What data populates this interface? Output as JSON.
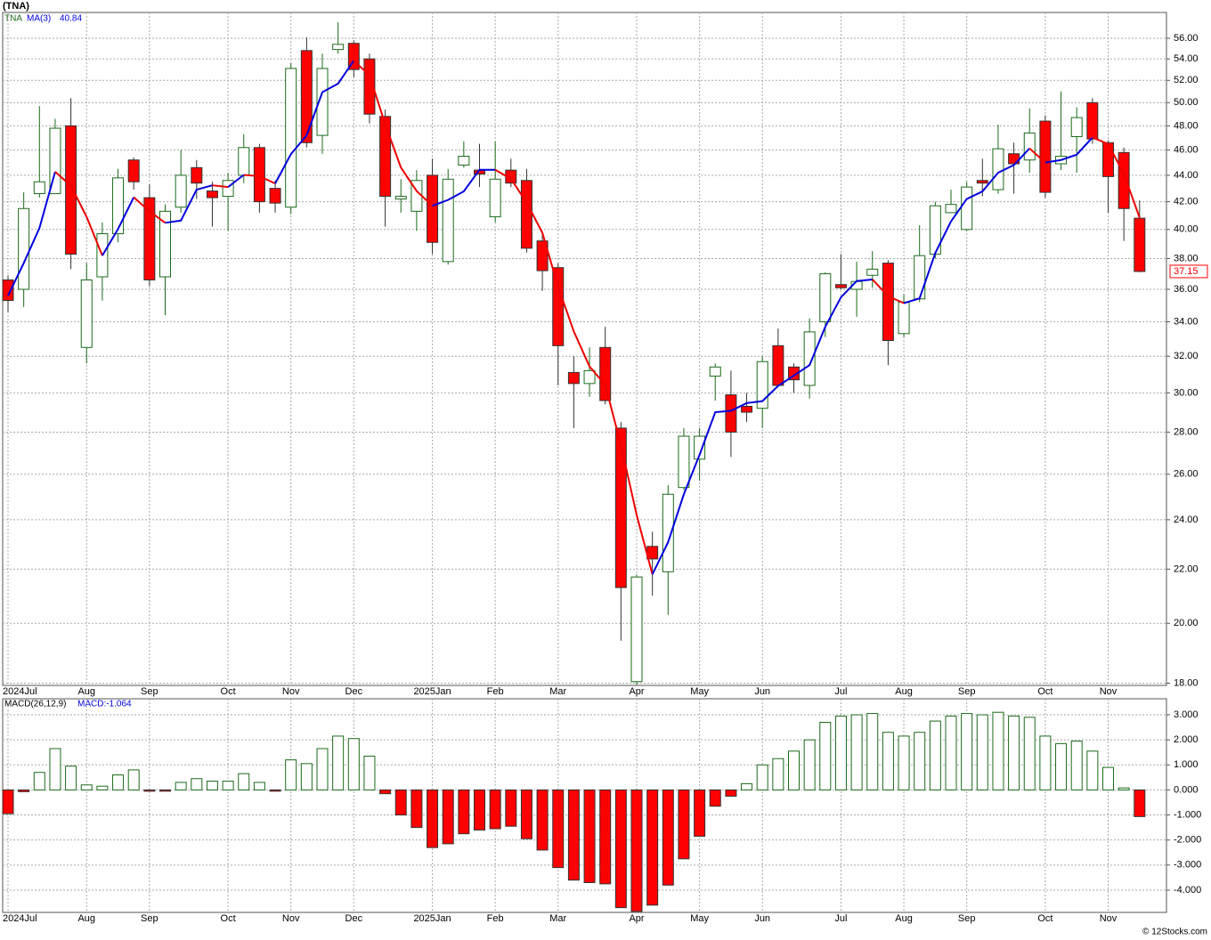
{
  "chart_data": [
    {
      "type": "candlestick",
      "title": "(TNA)",
      "symbol": "TNA",
      "log_scale": true,
      "grid": true,
      "up_color": "#1a6b1a",
      "down_color": "#ff0000",
      "categories": [
        "2024Jul",
        null,
        null,
        null,
        null,
        "Aug",
        null,
        null,
        null,
        "Sep",
        null,
        null,
        null,
        null,
        "Oct",
        null,
        null,
        null,
        "Nov",
        null,
        null,
        null,
        "Dec",
        null,
        null,
        null,
        null,
        "2025Jan",
        null,
        null,
        null,
        "Feb",
        null,
        null,
        null,
        "Mar",
        null,
        null,
        null,
        null,
        "Apr",
        null,
        null,
        null,
        "May",
        null,
        null,
        null,
        "Jun",
        null,
        null,
        null,
        null,
        "Jul",
        null,
        null,
        null,
        "Aug",
        null,
        null,
        null,
        "Sep",
        null,
        null,
        null,
        null,
        "Oct",
        null,
        null,
        null,
        "Nov",
        null,
        null
      ],
      "open": [
        36.6,
        36,
        42.6,
        42.6,
        48,
        32.5,
        36.8,
        39.7,
        45.2,
        42.3,
        36.8,
        41.6,
        44.6,
        42.8,
        42.4,
        44,
        46.2,
        43,
        41.6,
        54.8,
        47.2,
        54.9,
        55.5,
        54,
        48.8,
        42.2,
        41.3,
        44,
        37.8,
        44.8,
        44.4,
        40.9,
        44.4,
        43.6,
        39.2,
        37.4,
        31.1,
        30.5,
        32.5,
        28.2,
        18.05,
        22.9,
        21.9,
        25.4,
        26.7,
        30.9,
        29.9,
        29.3,
        29.2,
        32.6,
        31.4,
        30.4,
        34,
        36.3,
        36,
        36.9,
        37.7,
        33.3,
        35.4,
        38.3,
        41.2,
        40,
        43.6,
        42.9,
        45.7,
        45.2,
        48.4,
        44.9,
        47.1,
        50,
        46.6,
        45.8,
        40.8
      ],
      "high": [
        36.9,
        42.7,
        49.7,
        48.6,
        50.4,
        37.7,
        40.5,
        44.5,
        45.4,
        43.3,
        41.8,
        46,
        45.2,
        43.5,
        44.2,
        47.3,
        46.5,
        43.6,
        53.6,
        56.1,
        54.5,
        57.6,
        55.8,
        54.5,
        49.4,
        43.7,
        44.4,
        45.3,
        44.5,
        46.7,
        46.5,
        46.7,
        45.3,
        44.5,
        39.8,
        37.7,
        32,
        32.5,
        33.7,
        28.5,
        21.8,
        23.5,
        25.5,
        28.2,
        28.2,
        31.6,
        31.2,
        30,
        32,
        33.6,
        31.6,
        34.2,
        37.1,
        38.3,
        37.8,
        38.5,
        37.9,
        35.7,
        40.3,
        42,
        42.9,
        43.5,
        45.3,
        48.1,
        46.6,
        49.5,
        48.9,
        51,
        49.6,
        50.4,
        46.8,
        46.2,
        42.1
      ],
      "low": [
        34.6,
        34.9,
        42.3,
        42.6,
        37.3,
        31.6,
        35.3,
        39.1,
        42.9,
        36.2,
        34.4,
        41.2,
        42.2,
        40.2,
        39.9,
        43.4,
        41.2,
        41.2,
        41.1,
        46.2,
        45.7,
        54.5,
        52.3,
        48.2,
        40.2,
        41.2,
        39.9,
        38.3,
        37.6,
        44.6,
        43.1,
        40.5,
        43.1,
        38.4,
        35.9,
        30.4,
        28.2,
        29.8,
        29.4,
        19.4,
        17.95,
        21,
        20.3,
        25.3,
        25.7,
        29.6,
        26.8,
        28.5,
        28.2,
        30.4,
        30,
        29.7,
        33.1,
        36,
        34.3,
        36.1,
        31.5,
        33.1,
        35.2,
        38,
        41.2,
        39.9,
        42.4,
        42.6,
        42.6,
        44.2,
        42.3,
        44.4,
        44.2,
        46.5,
        41.2,
        39.2,
        37.1
      ],
      "close": [
        35.3,
        41.5,
        43.5,
        47.8,
        38.3,
        36.6,
        39.7,
        43.8,
        43.5,
        36.6,
        41.3,
        44,
        43.4,
        42.3,
        43.6,
        46.2,
        42,
        41.9,
        53.1,
        46.6,
        53.1,
        55.4,
        53,
        49,
        42.4,
        42.4,
        43.6,
        39.1,
        43.7,
        45.5,
        44.1,
        43.7,
        43.4,
        38.7,
        37.2,
        32.6,
        30.5,
        31.2,
        29.6,
        21.3,
        21.7,
        22.4,
        25.1,
        27.8,
        27.8,
        31.4,
        28,
        29,
        31.7,
        30.4,
        30.7,
        33.4,
        37,
        36.1,
        36.5,
        37.3,
        32.9,
        35.2,
        38.2,
        41.7,
        41.8,
        43.1,
        43.4,
        46.1,
        44.9,
        47.4,
        42.7,
        45.5,
        48.7,
        46.9,
        43.9,
        41.5,
        37.15
      ],
      "ma": {
        "name": "MA(3)",
        "up_color": "#0000dd",
        "down_color": "#ee0000",
        "last_value_label": "40.84",
        "values": [
          35.6,
          37.7,
          40.1,
          44.27,
          43.2,
          40.9,
          38.2,
          40.03,
          42.33,
          41.3,
          40.47,
          40.63,
          42.9,
          43.23,
          43.1,
          44.03,
          43.93,
          43.37,
          45.67,
          47.2,
          50.93,
          51.7,
          53.83,
          52.47,
          48.13,
          44.6,
          42.8,
          41.7,
          42.13,
          42.77,
          44.43,
          44.43,
          43.73,
          41.93,
          39.77,
          36.17,
          33.43,
          31.43,
          30.43,
          27.37,
          24.2,
          21.8,
          23.07,
          25.1,
          26.9,
          29,
          29.07,
          29.47,
          29.57,
          30.37,
          30.93,
          31.5,
          33.7,
          35.5,
          36.53,
          36.63,
          35.57,
          35.13,
          35.43,
          38.37,
          40.57,
          42.2,
          42.77,
          44.2,
          44.8,
          46.13,
          45,
          45.2,
          45.63,
          47.03,
          46.5,
          44.1,
          40.84
        ]
      },
      "ylim": [
        17.93,
        58.6
      ],
      "yticks": [
        {
          "value": 18,
          "label": "18.00"
        },
        {
          "value": 20,
          "label": "20.00"
        },
        {
          "value": 22,
          "label": "22.00"
        },
        {
          "value": 24,
          "label": "24.00"
        },
        {
          "value": 26,
          "label": "26.00"
        },
        {
          "value": 28,
          "label": "28.00"
        },
        {
          "value": 30,
          "label": "30.00"
        },
        {
          "value": 32,
          "label": "32.00"
        },
        {
          "value": 34,
          "label": "34.00"
        },
        {
          "value": 36,
          "label": "36.00"
        },
        {
          "value": 38,
          "label": "38.00"
        },
        {
          "value": 40,
          "label": "40.00"
        },
        {
          "value": 42,
          "label": "42.00"
        },
        {
          "value": 44,
          "label": "44.00"
        },
        {
          "value": 46,
          "label": "46.00"
        },
        {
          "value": 48,
          "label": "48.00"
        },
        {
          "value": 50,
          "label": "50.00"
        },
        {
          "value": 52,
          "label": "52.00"
        },
        {
          "value": 54,
          "label": "54.00"
        },
        {
          "value": 56,
          "label": "56.00"
        }
      ]
    },
    {
      "type": "bar",
      "title": "MACD(26,12,9)",
      "label": "MACD:-1.064",
      "grid": true,
      "pos_color": "#1a6b1a",
      "neg_color": "#ff0000",
      "values": [
        -0.95,
        -0.07,
        0.7,
        1.65,
        0.95,
        0.2,
        0.15,
        0.6,
        0.8,
        -0.05,
        -0.05,
        0.3,
        0.45,
        0.35,
        0.35,
        0.65,
        0.3,
        -0.05,
        1.2,
        1.05,
        1.65,
        2.15,
        2.05,
        1.35,
        -0.15,
        -1.0,
        -1.5,
        -2.3,
        -2.15,
        -1.75,
        -1.6,
        -1.55,
        -1.45,
        -1.95,
        -2.4,
        -3.1,
        -3.6,
        -3.7,
        -3.75,
        -4.7,
        -4.85,
        -4.6,
        -3.8,
        -2.75,
        -1.85,
        -0.65,
        -0.25,
        0.25,
        1.0,
        1.25,
        1.55,
        2.0,
        2.7,
        2.95,
        3.0,
        3.05,
        2.3,
        2.15,
        2.3,
        2.75,
        2.95,
        3.05,
        3.0,
        3.1,
        2.95,
        2.9,
        2.15,
        1.85,
        1.95,
        1.55,
        0.9,
        0.08,
        -1.064
      ],
      "ylim": [
        -4.89,
        3.64
      ],
      "yticks": [
        {
          "value": 3,
          "label": "3.000"
        },
        {
          "value": 2,
          "label": "2.000"
        },
        {
          "value": 1,
          "label": "1.000"
        },
        {
          "value": 0,
          "label": "0.000"
        },
        {
          "value": -1,
          "label": "-1.000"
        },
        {
          "value": -2,
          "label": "-2.000"
        },
        {
          "value": -3,
          "label": "-3.000"
        },
        {
          "value": -4,
          "label": "-4.000"
        }
      ]
    }
  ],
  "credit": "© 12Stocks.com"
}
